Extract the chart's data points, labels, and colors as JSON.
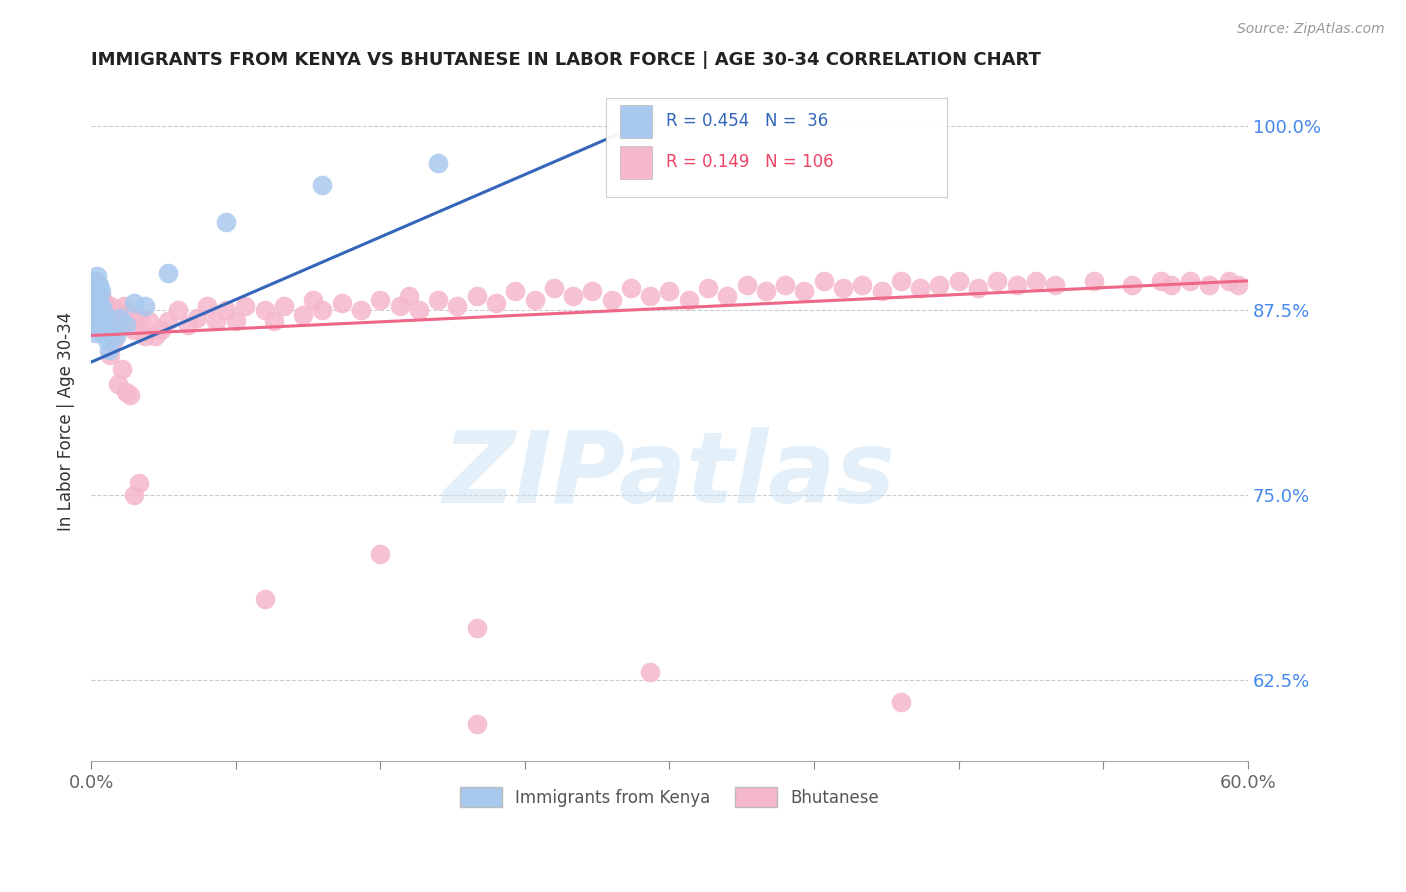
{
  "title": "IMMIGRANTS FROM KENYA VS BHUTANESE IN LABOR FORCE | AGE 30-34 CORRELATION CHART",
  "source": "Source: ZipAtlas.com",
  "ylabel": "In Labor Force | Age 30-34",
  "xlim": [
    0.0,
    0.6
  ],
  "ylim": [
    0.57,
    1.03
  ],
  "yticks": [
    0.625,
    0.75,
    0.875,
    1.0
  ],
  "ytick_labels": [
    "62.5%",
    "75.0%",
    "87.5%",
    "100.0%"
  ],
  "xtick_left_label": "0.0%",
  "xtick_right_label": "60.0%",
  "xticks_minor": [
    0.0,
    0.075,
    0.15,
    0.225,
    0.3,
    0.375,
    0.45,
    0.525,
    0.6
  ],
  "kenya_R": 0.454,
  "kenya_N": 36,
  "bhutan_R": 0.149,
  "bhutan_N": 106,
  "kenya_color": "#a8c8ee",
  "kenya_edge_color": "#a8c8ee",
  "kenya_line_color": "#3366bb",
  "bhutan_color": "#f5b8cc",
  "bhutan_edge_color": "#f5b8cc",
  "bhutan_line_color": "#ee6688",
  "watermark": "ZIPatlas",
  "legend_label_kenya": "Immigrants from Kenya",
  "legend_label_bhutan": "Bhutanese",
  "kenya_x": [
    0.001,
    0.001,
    0.001,
    0.002,
    0.002,
    0.002,
    0.002,
    0.003,
    0.003,
    0.003,
    0.003,
    0.004,
    0.004,
    0.004,
    0.004,
    0.005,
    0.005,
    0.005,
    0.006,
    0.006,
    0.007,
    0.007,
    0.008,
    0.009,
    0.01,
    0.011,
    0.013,
    0.015,
    0.018,
    0.022,
    0.028,
    0.04,
    0.07,
    0.12,
    0.18,
    0.28
  ],
  "kenya_y": [
    0.87,
    0.88,
    0.89,
    0.86,
    0.875,
    0.885,
    0.895,
    0.865,
    0.878,
    0.888,
    0.898,
    0.862,
    0.872,
    0.882,
    0.892,
    0.868,
    0.878,
    0.888,
    0.865,
    0.875,
    0.86,
    0.872,
    0.855,
    0.848,
    0.858,
    0.862,
    0.858,
    0.87,
    0.865,
    0.88,
    0.878,
    0.9,
    0.935,
    0.96,
    0.975,
    0.998
  ],
  "bhutan_x": [
    0.001,
    0.001,
    0.002,
    0.002,
    0.002,
    0.003,
    0.003,
    0.003,
    0.004,
    0.004,
    0.004,
    0.005,
    0.005,
    0.005,
    0.006,
    0.006,
    0.007,
    0.007,
    0.008,
    0.008,
    0.009,
    0.01,
    0.01,
    0.011,
    0.012,
    0.013,
    0.015,
    0.017,
    0.018,
    0.02,
    0.022,
    0.025,
    0.028,
    0.03,
    0.033,
    0.036,
    0.04,
    0.045,
    0.05,
    0.055,
    0.06,
    0.065,
    0.07,
    0.075,
    0.08,
    0.09,
    0.095,
    0.1,
    0.11,
    0.115,
    0.12,
    0.13,
    0.14,
    0.15,
    0.16,
    0.165,
    0.17,
    0.18,
    0.19,
    0.2,
    0.21,
    0.22,
    0.23,
    0.24,
    0.25,
    0.26,
    0.27,
    0.28,
    0.29,
    0.3,
    0.31,
    0.32,
    0.33,
    0.34,
    0.35,
    0.36,
    0.37,
    0.38,
    0.39,
    0.4,
    0.41,
    0.42,
    0.43,
    0.44,
    0.45,
    0.46,
    0.47,
    0.48,
    0.49,
    0.5,
    0.52,
    0.54,
    0.555,
    0.56,
    0.57,
    0.58,
    0.59,
    0.595,
    0.01,
    0.012,
    0.014,
    0.016,
    0.018,
    0.02,
    0.022,
    0.025
  ],
  "bhutan_y": [
    0.875,
    0.885,
    0.865,
    0.88,
    0.895,
    0.87,
    0.882,
    0.892,
    0.868,
    0.878,
    0.888,
    0.865,
    0.875,
    0.885,
    0.868,
    0.878,
    0.87,
    0.88,
    0.865,
    0.875,
    0.87,
    0.868,
    0.878,
    0.872,
    0.865,
    0.875,
    0.868,
    0.878,
    0.865,
    0.872,
    0.862,
    0.87,
    0.858,
    0.868,
    0.858,
    0.862,
    0.868,
    0.875,
    0.865,
    0.87,
    0.878,
    0.868,
    0.875,
    0.868,
    0.878,
    0.875,
    0.868,
    0.878,
    0.872,
    0.882,
    0.875,
    0.88,
    0.875,
    0.882,
    0.878,
    0.885,
    0.875,
    0.882,
    0.878,
    0.885,
    0.88,
    0.888,
    0.882,
    0.89,
    0.885,
    0.888,
    0.882,
    0.89,
    0.885,
    0.888,
    0.882,
    0.89,
    0.885,
    0.892,
    0.888,
    0.892,
    0.888,
    0.895,
    0.89,
    0.892,
    0.888,
    0.895,
    0.89,
    0.892,
    0.895,
    0.89,
    0.895,
    0.892,
    0.895,
    0.892,
    0.895,
    0.892,
    0.895,
    0.892,
    0.895,
    0.892,
    0.895,
    0.892,
    0.845,
    0.855,
    0.825,
    0.835,
    0.82,
    0.818,
    0.75,
    0.758
  ],
  "bhutan_y_outliers": [
    0.71,
    0.68,
    0.66,
    0.63,
    0.61,
    0.595
  ],
  "bhutan_x_outliers": [
    0.15,
    0.09,
    0.2,
    0.29,
    0.42,
    0.2
  ],
  "kenya_line_x0": 0.0,
  "kenya_line_y0": 0.84,
  "kenya_line_x1": 0.28,
  "kenya_line_y1": 0.998,
  "bhutan_line_x0": 0.0,
  "bhutan_line_y0": 0.858,
  "bhutan_line_x1": 0.6,
  "bhutan_line_y1": 0.895
}
